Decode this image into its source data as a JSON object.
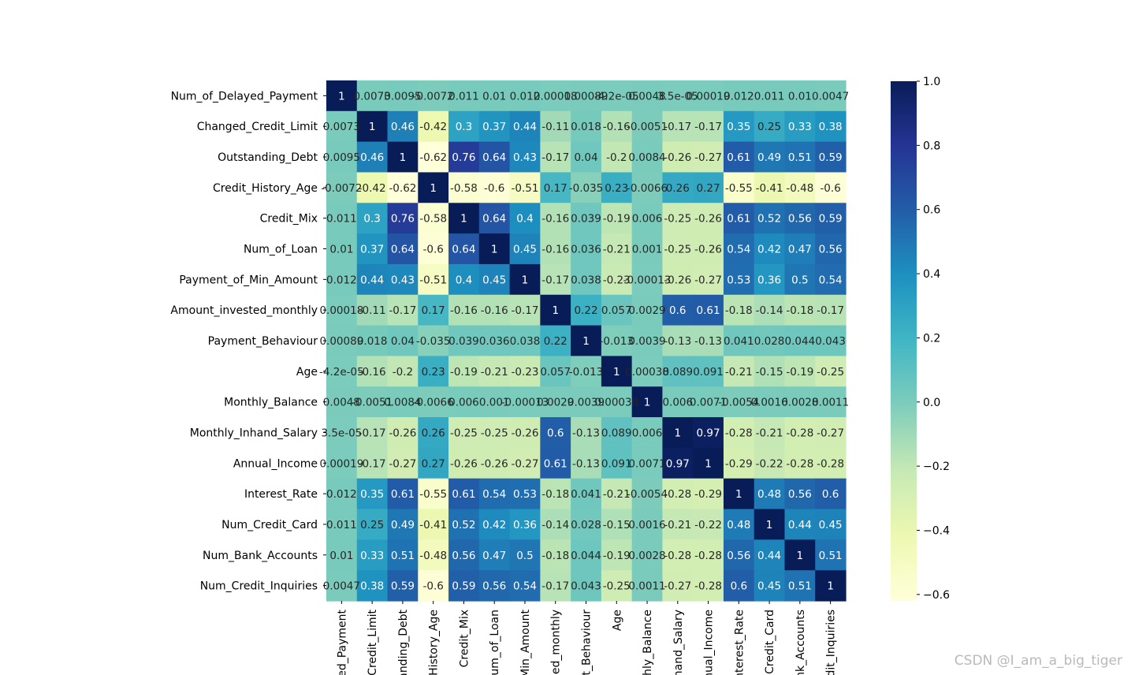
{
  "chart_data": {
    "type": "heatmap",
    "colormap": "YlGnBu",
    "vmin": -0.62,
    "vmax": 1.0,
    "colorbar_ticks": [
      "1.0",
      "0.8",
      "0.6",
      "0.4",
      "0.2",
      "0.0",
      "−0.2",
      "−0.4",
      "−0.6"
    ],
    "colorbar_tick_values": [
      1.0,
      0.8,
      0.6,
      0.4,
      0.2,
      0.0,
      -0.2,
      -0.4,
      -0.6
    ],
    "row_labels": [
      "Num_of_Delayed_Payment",
      "Changed_Credit_Limit",
      "Outstanding_Debt",
      "Credit_History_Age",
      "Credit_Mix",
      "Num_of_Loan",
      "Payment_of_Min_Amount",
      "Amount_invested_monthly",
      "Payment_Behaviour",
      "Age",
      "Monthly_Balance",
      "Monthly_Inhand_Salary",
      "Annual_Income",
      "Interest_Rate",
      "Num_Credit_Card",
      "Num_Bank_Accounts",
      "Num_Credit_Inquiries"
    ],
    "col_labels": [
      "ed_Payment",
      "Credit_Limit",
      "anding_Debt",
      "History_Age",
      "Credit_Mix",
      "um_of_Loan",
      "Min_Amount",
      "ed_monthly",
      "t_Behaviour",
      "Age",
      "nthly_Balance",
      "nhand_Salary",
      "nual_Income",
      "nterest_Rate",
      "Credit_Card",
      "ank_Accounts",
      "dit_Inquiries"
    ],
    "values": [
      [
        1,
        0.0073,
        0.0095,
        -0.0072,
        0.011,
        0.01,
        0.012,
        0.00018,
        0.00089,
        -4.2e-05,
        0.0048,
        3.5e-05,
        0.00019,
        0.012,
        0.011,
        0.01,
        0.0047
      ],
      [
        0.0073,
        1,
        0.46,
        -0.42,
        0.3,
        0.37,
        0.44,
        -0.11,
        0.018,
        -0.16,
        -0.0051,
        -0.17,
        -0.17,
        0.35,
        0.25,
        0.33,
        0.38
      ],
      [
        0.0095,
        0.46,
        1,
        -0.62,
        0.76,
        0.64,
        0.43,
        -0.17,
        0.04,
        -0.2,
        0.0084,
        -0.26,
        -0.27,
        0.61,
        0.49,
        0.51,
        0.59
      ],
      [
        -0.0072,
        -0.42,
        -0.62,
        1,
        -0.58,
        -0.6,
        -0.51,
        0.17,
        -0.035,
        0.23,
        -0.0066,
        0.26,
        0.27,
        -0.55,
        -0.41,
        -0.48,
        -0.6
      ],
      [
        0.011,
        0.3,
        0.76,
        -0.58,
        1,
        0.64,
        0.4,
        -0.16,
        0.039,
        -0.19,
        0.006,
        -0.25,
        -0.26,
        0.61,
        0.52,
        0.56,
        0.59
      ],
      [
        0.01,
        0.37,
        0.64,
        -0.6,
        0.64,
        1,
        0.45,
        -0.16,
        0.036,
        -0.21,
        0.001,
        -0.25,
        -0.26,
        0.54,
        0.42,
        0.47,
        0.56
      ],
      [
        0.012,
        0.44,
        0.43,
        -0.51,
        0.4,
        0.45,
        1,
        -0.17,
        0.038,
        -0.23,
        -0.00013,
        -0.26,
        -0.27,
        0.53,
        0.36,
        0.5,
        0.54
      ],
      [
        0.00018,
        -0.11,
        -0.17,
        0.17,
        -0.16,
        -0.16,
        -0.17,
        1,
        0.22,
        0.057,
        0.0029,
        0.6,
        0.61,
        -0.18,
        -0.14,
        -0.18,
        -0.17
      ],
      [
        0.00089,
        0.018,
        0.04,
        -0.035,
        0.039,
        0.036,
        0.038,
        0.22,
        1,
        -0.013,
        0.0039,
        -0.13,
        -0.13,
        0.041,
        0.028,
        0.044,
        0.043
      ],
      [
        -4.2e-05,
        -0.16,
        -0.2,
        0.23,
        -0.19,
        -0.21,
        -0.23,
        0.057,
        -0.013,
        1,
        0.00038,
        0.089,
        0.091,
        -0.21,
        -0.15,
        -0.19,
        -0.25
      ],
      [
        0.0048,
        -0.0051,
        0.0084,
        -0.0066,
        0.006,
        0.001,
        -0.00013,
        0.0029,
        0.0039,
        0.00038,
        1,
        0.006,
        0.0071,
        -0.0054,
        0.0016,
        0.0028,
        0.0011
      ],
      [
        3.5e-05,
        -0.17,
        -0.26,
        0.26,
        -0.25,
        -0.25,
        -0.26,
        0.6,
        -0.13,
        0.089,
        0.006,
        1,
        0.97,
        -0.28,
        -0.21,
        -0.28,
        -0.27
      ],
      [
        0.00019,
        -0.17,
        -0.27,
        0.27,
        -0.26,
        -0.26,
        -0.27,
        0.61,
        -0.13,
        0.091,
        0.0071,
        0.97,
        1,
        -0.29,
        -0.22,
        -0.28,
        -0.28
      ],
      [
        0.012,
        0.35,
        0.61,
        -0.55,
        0.61,
        0.54,
        0.53,
        -0.18,
        0.041,
        -0.21,
        -0.0054,
        -0.28,
        -0.29,
        1,
        0.48,
        0.56,
        0.6
      ],
      [
        0.011,
        0.25,
        0.49,
        -0.41,
        0.52,
        0.42,
        0.36,
        -0.14,
        0.028,
        -0.15,
        0.0016,
        -0.21,
        -0.22,
        0.48,
        1,
        0.44,
        0.45
      ],
      [
        0.01,
        0.33,
        0.51,
        -0.48,
        0.56,
        0.47,
        0.5,
        -0.18,
        0.044,
        -0.19,
        0.0028,
        -0.28,
        -0.28,
        0.56,
        0.44,
        1,
        0.51
      ],
      [
        0.0047,
        0.38,
        0.59,
        -0.6,
        0.59,
        0.56,
        0.54,
        -0.17,
        0.043,
        -0.25,
        0.0011,
        -0.27,
        -0.28,
        0.6,
        0.45,
        0.51,
        1
      ]
    ],
    "annotations": [
      [
        "1",
        "0.0073",
        "0.0095",
        "-0.0072",
        "0.011",
        "0.01",
        "0.012",
        "0.00018",
        "0.00089",
        "-4.2e-05",
        "0.0048",
        "3.5e-05",
        "0.00019",
        "0.012",
        "0.011",
        "0.01",
        "0.0047"
      ],
      [
        "0.0073",
        "1",
        "0.46",
        "-0.42",
        "0.3",
        "0.37",
        "0.44",
        "-0.11",
        "0.018",
        "-0.16",
        "-0.0051",
        "-0.17",
        "-0.17",
        "0.35",
        "0.25",
        "0.33",
        "0.38"
      ],
      [
        "0.0095",
        "0.46",
        "1",
        "-0.62",
        "0.76",
        "0.64",
        "0.43",
        "-0.17",
        "0.04",
        "-0.2",
        "0.0084",
        "-0.26",
        "-0.27",
        "0.61",
        "0.49",
        "0.51",
        "0.59"
      ],
      [
        "-0.0072",
        "-0.42",
        "-0.62",
        "1",
        "-0.58",
        "-0.6",
        "-0.51",
        "0.17",
        "-0.035",
        "0.23",
        "-0.0066",
        "0.26",
        "0.27",
        "-0.55",
        "-0.41",
        "-0.48",
        "-0.6"
      ],
      [
        "0.011",
        "0.3",
        "0.76",
        "-0.58",
        "1",
        "0.64",
        "0.4",
        "-0.16",
        "0.039",
        "-0.19",
        "0.006",
        "-0.25",
        "-0.26",
        "0.61",
        "0.52",
        "0.56",
        "0.59"
      ],
      [
        "0.01",
        "0.37",
        "0.64",
        "-0.6",
        "0.64",
        "1",
        "0.45",
        "-0.16",
        "0.036",
        "-0.21",
        "0.001",
        "-0.25",
        "-0.26",
        "0.54",
        "0.42",
        "0.47",
        "0.56"
      ],
      [
        "0.012",
        "0.44",
        "0.43",
        "-0.51",
        "0.4",
        "0.45",
        "1",
        "-0.17",
        "0.038",
        "-0.23",
        "-0.00013",
        "-0.26",
        "-0.27",
        "0.53",
        "0.36",
        "0.5",
        "0.54"
      ],
      [
        "0.00018",
        "-0.11",
        "-0.17",
        "0.17",
        "-0.16",
        "-0.16",
        "-0.17",
        "1",
        "0.22",
        "0.057",
        "0.0029",
        "0.6",
        "0.61",
        "-0.18",
        "-0.14",
        "-0.18",
        "-0.17"
      ],
      [
        "0.00089",
        "0.018",
        "0.04",
        "-0.035",
        "0.039",
        "0.036",
        "0.038",
        "0.22",
        "1",
        "-0.013",
        "0.0039",
        "-0.13",
        "-0.13",
        "0.041",
        "0.028",
        "0.044",
        "0.043"
      ],
      [
        "-4.2e-05",
        "-0.16",
        "-0.2",
        "0.23",
        "-0.19",
        "-0.21",
        "-0.23",
        "0.057",
        "-0.013",
        "1",
        "0.00038",
        "0.089",
        "0.091",
        "-0.21",
        "-0.15",
        "-0.19",
        "-0.25"
      ],
      [
        "0.0048",
        "-0.0051",
        "0.0084",
        "-0.0066",
        "0.006",
        "0.001",
        "-0.00013",
        "0.0029",
        "0.0039",
        "0.00038",
        "1",
        "0.006",
        "0.0071",
        "-0.0054",
        "0.0016",
        "0.0028",
        "0.0011"
      ],
      [
        "3.5e-05",
        "-0.17",
        "-0.26",
        "0.26",
        "-0.25",
        "-0.25",
        "-0.26",
        "0.6",
        "-0.13",
        "0.089",
        "0.006",
        "1",
        "0.97",
        "-0.28",
        "-0.21",
        "-0.28",
        "-0.27"
      ],
      [
        "0.00019",
        "-0.17",
        "-0.27",
        "0.27",
        "-0.26",
        "-0.26",
        "-0.27",
        "0.61",
        "-0.13",
        "0.091",
        "0.0071",
        "0.97",
        "1",
        "-0.29",
        "-0.22",
        "-0.28",
        "-0.28"
      ],
      [
        "0.012",
        "0.35",
        "0.61",
        "-0.55",
        "0.61",
        "0.54",
        "0.53",
        "-0.18",
        "0.041",
        "-0.21",
        "-0.0054",
        "-0.28",
        "-0.29",
        "1",
        "0.48",
        "0.56",
        "0.6"
      ],
      [
        "0.011",
        "0.25",
        "0.49",
        "-0.41",
        "0.52",
        "0.42",
        "0.36",
        "-0.14",
        "0.028",
        "-0.15",
        "0.0016",
        "-0.21",
        "-0.22",
        "0.48",
        "1",
        "0.44",
        "0.45"
      ],
      [
        "0.01",
        "0.33",
        "0.51",
        "-0.48",
        "0.56",
        "0.47",
        "0.5",
        "-0.18",
        "0.044",
        "-0.19",
        "0.0028",
        "-0.28",
        "-0.28",
        "0.56",
        "0.44",
        "1",
        "0.51"
      ],
      [
        "0.0047",
        "0.38",
        "0.59",
        "-0.6",
        "0.59",
        "0.56",
        "0.54",
        "-0.17",
        "0.043",
        "-0.25",
        "0.0011",
        "-0.27",
        "-0.28",
        "0.6",
        "0.45",
        "0.51",
        "1"
      ]
    ]
  },
  "watermark": "CSDN @I_am_a_big_tiger"
}
